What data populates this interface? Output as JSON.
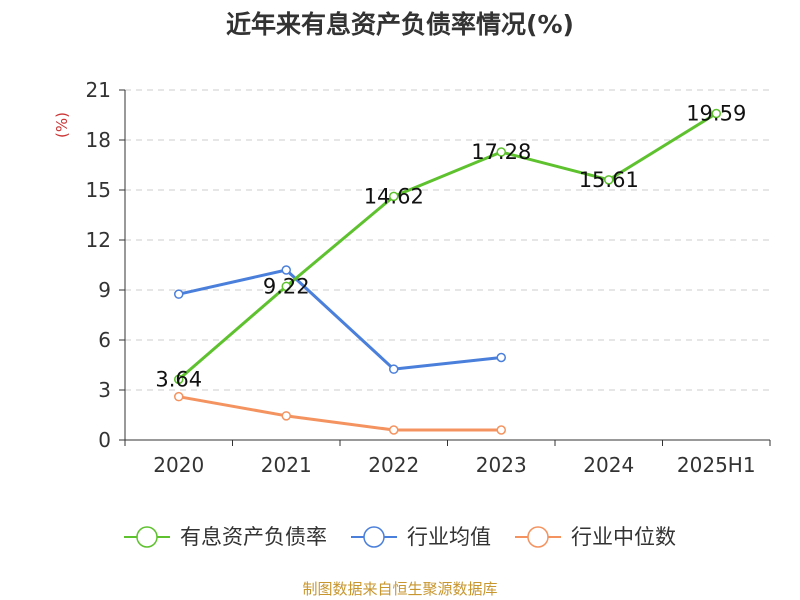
{
  "chart_data": {
    "type": "line",
    "title": "近年来有息资产负债率情况(%)",
    "xlabel": "",
    "ylabel": "(%)",
    "categories": [
      "2020",
      "2021",
      "2022",
      "2023",
      "2024",
      "2025H1"
    ],
    "ylim": [
      0,
      21
    ],
    "yticks": [
      0,
      3,
      6,
      9,
      12,
      15,
      18,
      21
    ],
    "grid": true,
    "legend_position": "bottom",
    "series": [
      {
        "name": "有息资产负债率",
        "color": "#5ec12e",
        "values": [
          3.64,
          9.22,
          14.62,
          17.28,
          15.61,
          19.59
        ],
        "labels": [
          "3.64",
          "9.22",
          "14.62",
          "17.28",
          "15.61",
          "19.59"
        ]
      },
      {
        "name": "行业均值",
        "color": "#4a7fdb",
        "values": [
          8.75,
          10.2,
          4.25,
          4.95,
          null,
          null
        ]
      },
      {
        "name": "行业中位数",
        "color": "#f4935f",
        "values": [
          2.6,
          1.45,
          0.6,
          0.6,
          null,
          null
        ]
      }
    ],
    "source": "制图数据来自恒生聚源数据库"
  },
  "colors": {
    "ylabel": "#cc3333",
    "source": "#c8962e",
    "axis": "#333333",
    "grid": "#cccccc"
  }
}
